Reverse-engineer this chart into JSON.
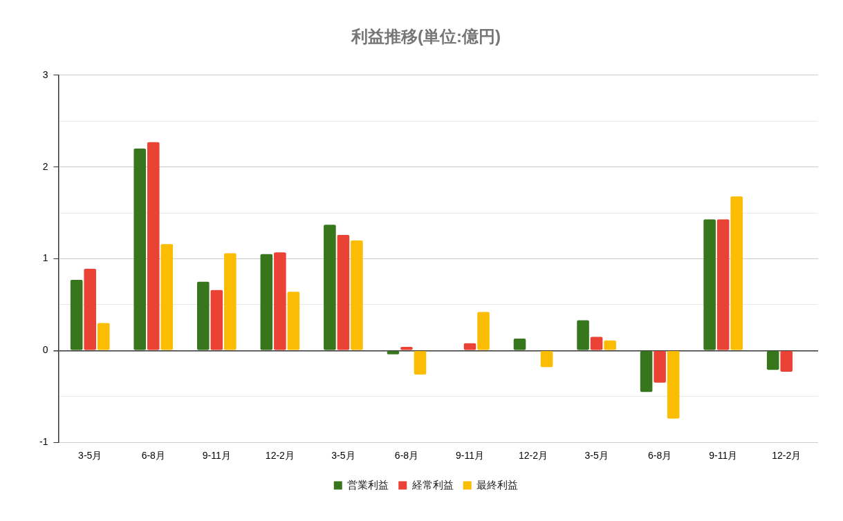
{
  "chart_data": {
    "type": "bar",
    "title": "利益推移(単位:億円)",
    "categories": [
      "3-5月",
      "6-8月",
      "9-11月",
      "12-2月",
      "3-5月",
      "6-8月",
      "9-11月",
      "12-2月",
      "3-5月",
      "6-8月",
      "9-11月",
      "12-2月"
    ],
    "series": [
      {
        "name": "営業利益",
        "color": "#38761d",
        "values": [
          0.77,
          2.2,
          0.75,
          1.05,
          1.37,
          -0.04,
          null,
          0.13,
          0.33,
          -0.45,
          1.43,
          -0.21
        ]
      },
      {
        "name": "経常利益",
        "color": "#ea4335",
        "values": [
          0.89,
          2.27,
          0.66,
          1.07,
          1.26,
          0.04,
          0.08,
          null,
          0.15,
          -0.35,
          1.43,
          -0.23
        ]
      },
      {
        "name": "最終利益",
        "color": "#fbbc04",
        "values": [
          0.3,
          1.16,
          1.06,
          0.64,
          1.2,
          -0.26,
          0.42,
          -0.18,
          0.11,
          -0.74,
          1.68,
          null
        ]
      }
    ],
    "ylim": [
      -1,
      3
    ],
    "yticks": [
      -1,
      {
        "value": -0.5,
        "label": null
      },
      0,
      {
        "value": 0.5,
        "label": null
      },
      1,
      {
        "value": 1.5,
        "label": null
      },
      2,
      {
        "value": 2.5,
        "label": null
      },
      3
    ],
    "grid": "y",
    "legend": "bottom"
  }
}
